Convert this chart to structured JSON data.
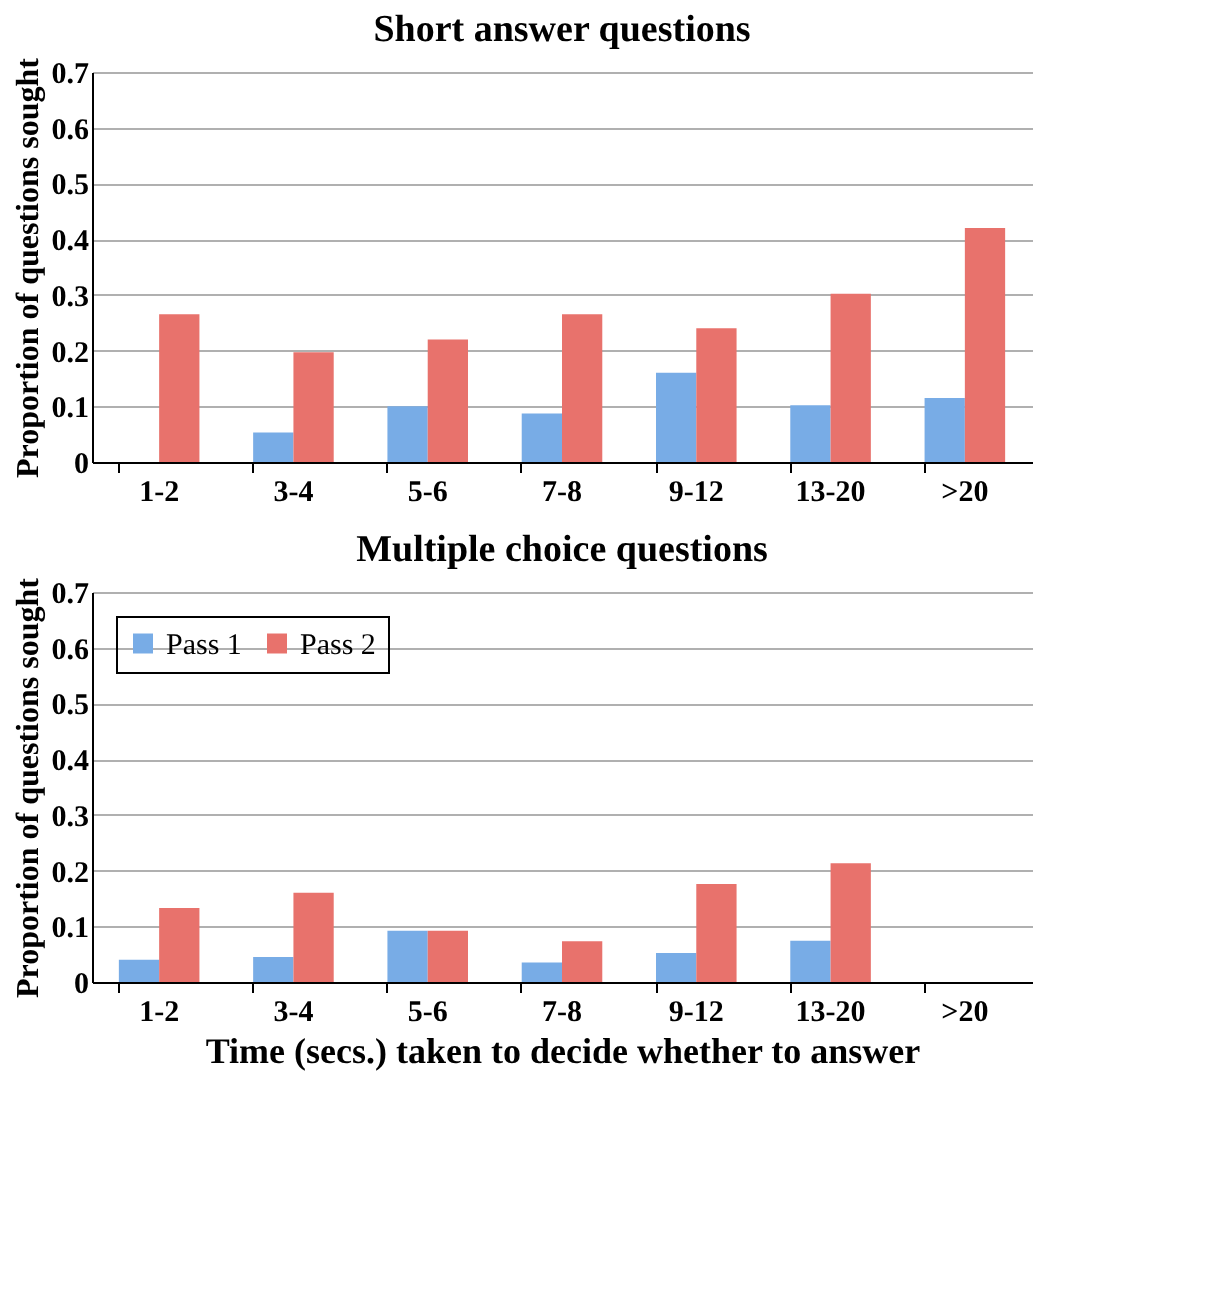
{
  "chart_data": [
    {
      "type": "bar",
      "title": "Short answer questions",
      "ylabel": "Proportion of questions sought",
      "categories": [
        "1-2",
        "3-4",
        "5-6",
        "7-8",
        "9-12",
        "13-20",
        ">20"
      ],
      "series": [
        {
          "color": "#78ace6",
          "values": [
            0,
            0.053,
            0.1,
            0.087,
            0.16,
            0.102,
            0.115
          ]
        },
        {
          "color": "#e8726c",
          "values": [
            0.265,
            0.197,
            0.22,
            0.265,
            0.24,
            0.302,
            0.42
          ]
        }
      ],
      "ylim": [
        0,
        0.7
      ],
      "yticks": [
        0,
        0.1,
        0.2,
        0.3,
        0.4,
        0.5,
        0.6,
        0.7
      ],
      "grid": "y",
      "legend": false
    },
    {
      "type": "bar",
      "title": "Multiple choice questions",
      "ylabel": "Proportion of questions sought",
      "xlabel": "Time (secs.) taken to decide whether to answer",
      "categories": [
        "1-2",
        "3-4",
        "5-6",
        "7-8",
        "9-12",
        "13-20",
        ">20"
      ],
      "series": [
        {
          "name": "Pass 1",
          "color": "#78ace6",
          "values": [
            0.04,
            0.045,
            0.092,
            0.035,
            0.052,
            0.074,
            0
          ]
        },
        {
          "name": "Pass 2",
          "color": "#e8726c",
          "values": [
            0.133,
            0.16,
            0.092,
            0.073,
            0.176,
            0.213,
            0
          ]
        }
      ],
      "ylim": [
        0,
        0.7
      ],
      "yticks": [
        0,
        0.1,
        0.2,
        0.3,
        0.4,
        0.5,
        0.6,
        0.7
      ],
      "grid": "y",
      "legend": "top left"
    }
  ]
}
